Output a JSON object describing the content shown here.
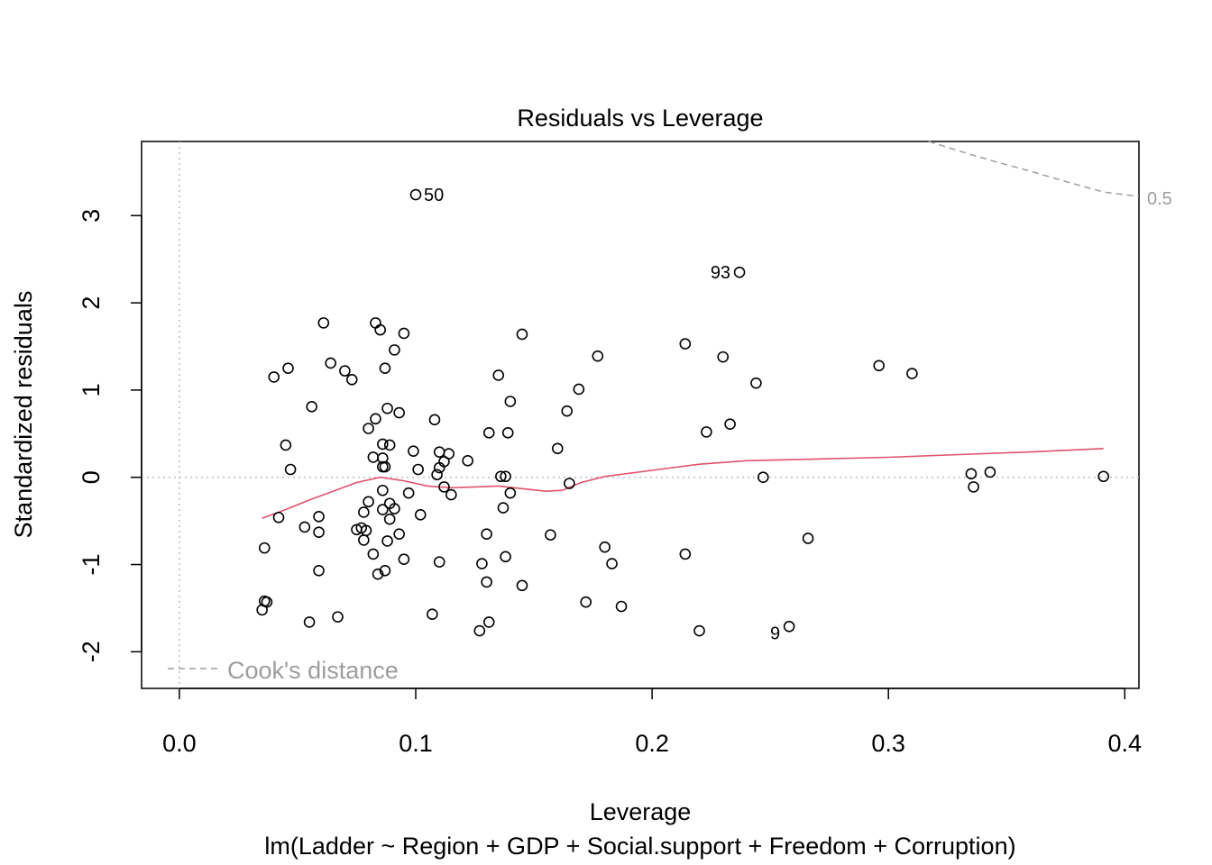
{
  "chart_data": {
    "type": "scatter",
    "title": "Residuals vs Leverage",
    "xlabel": "Leverage",
    "ylabel": "Standardized residuals",
    "subtitle": "lm(Ladder ~ Region + GDP + Social.support + Freedom + Corruption)",
    "xlim": [
      -0.016,
      0.406
    ],
    "ylim": [
      -2.42,
      3.85
    ],
    "x_ticks": [
      "0.0",
      "0.1",
      "0.2",
      "0.3",
      "0.4"
    ],
    "x_tick_values": [
      0,
      0.1,
      0.2,
      0.3,
      0.4
    ],
    "y_ticks": [
      "-2",
      "-1",
      "0",
      "1",
      "2",
      "3"
    ],
    "y_tick_values": [
      -2,
      -1,
      0,
      1,
      2,
      3
    ],
    "points": [
      {
        "x": 0.1,
        "y": 3.24,
        "label": "50"
      },
      {
        "x": 0.237,
        "y": 2.35,
        "label": "93"
      },
      {
        "x": 0.258,
        "y": -1.71,
        "label": "9"
      },
      {
        "x": 0.061,
        "y": 1.77
      },
      {
        "x": 0.083,
        "y": 1.77
      },
      {
        "x": 0.085,
        "y": 1.69
      },
      {
        "x": 0.095,
        "y": 1.65
      },
      {
        "x": 0.145,
        "y": 1.64
      },
      {
        "x": 0.091,
        "y": 1.46
      },
      {
        "x": 0.214,
        "y": 1.53
      },
      {
        "x": 0.177,
        "y": 1.39
      },
      {
        "x": 0.23,
        "y": 1.38
      },
      {
        "x": 0.064,
        "y": 1.31
      },
      {
        "x": 0.046,
        "y": 1.25
      },
      {
        "x": 0.087,
        "y": 1.25
      },
      {
        "x": 0.07,
        "y": 1.22
      },
      {
        "x": 0.04,
        "y": 1.15
      },
      {
        "x": 0.073,
        "y": 1.12
      },
      {
        "x": 0.135,
        "y": 1.17
      },
      {
        "x": 0.296,
        "y": 1.28
      },
      {
        "x": 0.31,
        "y": 1.19
      },
      {
        "x": 0.244,
        "y": 1.08
      },
      {
        "x": 0.169,
        "y": 1.01
      },
      {
        "x": 0.14,
        "y": 0.87
      },
      {
        "x": 0.056,
        "y": 0.81
      },
      {
        "x": 0.088,
        "y": 0.79
      },
      {
        "x": 0.093,
        "y": 0.74
      },
      {
        "x": 0.164,
        "y": 0.76
      },
      {
        "x": 0.083,
        "y": 0.67
      },
      {
        "x": 0.108,
        "y": 0.66
      },
      {
        "x": 0.08,
        "y": 0.56
      },
      {
        "x": 0.233,
        "y": 0.61
      },
      {
        "x": 0.223,
        "y": 0.52
      },
      {
        "x": 0.131,
        "y": 0.51
      },
      {
        "x": 0.139,
        "y": 0.51
      },
      {
        "x": 0.045,
        "y": 0.37
      },
      {
        "x": 0.086,
        "y": 0.38
      },
      {
        "x": 0.089,
        "y": 0.37
      },
      {
        "x": 0.099,
        "y": 0.3
      },
      {
        "x": 0.16,
        "y": 0.33
      },
      {
        "x": 0.11,
        "y": 0.29
      },
      {
        "x": 0.114,
        "y": 0.27
      },
      {
        "x": 0.082,
        "y": 0.23
      },
      {
        "x": 0.086,
        "y": 0.22
      },
      {
        "x": 0.112,
        "y": 0.18
      },
      {
        "x": 0.122,
        "y": 0.19
      },
      {
        "x": 0.086,
        "y": 0.12
      },
      {
        "x": 0.087,
        "y": 0.12
      },
      {
        "x": 0.047,
        "y": 0.09
      },
      {
        "x": 0.101,
        "y": 0.09
      },
      {
        "x": 0.11,
        "y": 0.11
      },
      {
        "x": 0.109,
        "y": 0.03
      },
      {
        "x": 0.136,
        "y": 0.01
      },
      {
        "x": 0.138,
        "y": 0.01
      },
      {
        "x": 0.247,
        "y": 0.0
      },
      {
        "x": 0.335,
        "y": 0.04
      },
      {
        "x": 0.343,
        "y": 0.06
      },
      {
        "x": 0.391,
        "y": 0.01
      },
      {
        "x": 0.336,
        "y": -0.11
      },
      {
        "x": 0.165,
        "y": -0.07
      },
      {
        "x": 0.112,
        "y": -0.11
      },
      {
        "x": 0.115,
        "y": -0.2
      },
      {
        "x": 0.086,
        "y": -0.15
      },
      {
        "x": 0.097,
        "y": -0.18
      },
      {
        "x": 0.14,
        "y": -0.18
      },
      {
        "x": 0.08,
        "y": -0.28
      },
      {
        "x": 0.089,
        "y": -0.3
      },
      {
        "x": 0.086,
        "y": -0.37
      },
      {
        "x": 0.091,
        "y": -0.36
      },
      {
        "x": 0.078,
        "y": -0.4
      },
      {
        "x": 0.042,
        "y": -0.46
      },
      {
        "x": 0.059,
        "y": -0.45
      },
      {
        "x": 0.089,
        "y": -0.48
      },
      {
        "x": 0.102,
        "y": -0.43
      },
      {
        "x": 0.137,
        "y": -0.35
      },
      {
        "x": 0.053,
        "y": -0.57
      },
      {
        "x": 0.075,
        "y": -0.6
      },
      {
        "x": 0.079,
        "y": -0.61
      },
      {
        "x": 0.077,
        "y": -0.58
      },
      {
        "x": 0.059,
        "y": -0.63
      },
      {
        "x": 0.093,
        "y": -0.65
      },
      {
        "x": 0.078,
        "y": -0.72
      },
      {
        "x": 0.088,
        "y": -0.73
      },
      {
        "x": 0.13,
        "y": -0.65
      },
      {
        "x": 0.157,
        "y": -0.66
      },
      {
        "x": 0.266,
        "y": -0.7
      },
      {
        "x": 0.036,
        "y": -0.81
      },
      {
        "x": 0.082,
        "y": -0.88
      },
      {
        "x": 0.095,
        "y": -0.94
      },
      {
        "x": 0.138,
        "y": -0.91
      },
      {
        "x": 0.18,
        "y": -0.8
      },
      {
        "x": 0.214,
        "y": -0.88
      },
      {
        "x": 0.11,
        "y": -0.97
      },
      {
        "x": 0.128,
        "y": -0.99
      },
      {
        "x": 0.183,
        "y": -0.99
      },
      {
        "x": 0.059,
        "y": -1.07
      },
      {
        "x": 0.084,
        "y": -1.11
      },
      {
        "x": 0.087,
        "y": -1.07
      },
      {
        "x": 0.13,
        "y": -1.2
      },
      {
        "x": 0.145,
        "y": -1.24
      },
      {
        "x": 0.172,
        "y": -1.43
      },
      {
        "x": 0.187,
        "y": -1.48
      },
      {
        "x": 0.036,
        "y": -1.42
      },
      {
        "x": 0.037,
        "y": -1.43
      },
      {
        "x": 0.035,
        "y": -1.52
      },
      {
        "x": 0.067,
        "y": -1.6
      },
      {
        "x": 0.055,
        "y": -1.66
      },
      {
        "x": 0.107,
        "y": -1.57
      },
      {
        "x": 0.131,
        "y": -1.66
      },
      {
        "x": 0.127,
        "y": -1.76
      },
      {
        "x": 0.22,
        "y": -1.76
      }
    ],
    "smoother": [
      [
        0.035,
        -0.47
      ],
      [
        0.045,
        -0.37
      ],
      [
        0.055,
        -0.26
      ],
      [
        0.065,
        -0.16
      ],
      [
        0.075,
        -0.06
      ],
      [
        0.085,
        0.0
      ],
      [
        0.095,
        -0.04
      ],
      [
        0.105,
        -0.1
      ],
      [
        0.115,
        -0.12
      ],
      [
        0.125,
        -0.11
      ],
      [
        0.135,
        -0.1
      ],
      [
        0.145,
        -0.13
      ],
      [
        0.155,
        -0.16
      ],
      [
        0.162,
        -0.15
      ],
      [
        0.17,
        -0.06
      ],
      [
        0.18,
        0.01
      ],
      [
        0.2,
        0.08
      ],
      [
        0.22,
        0.15
      ],
      [
        0.24,
        0.19
      ],
      [
        0.27,
        0.21
      ],
      [
        0.3,
        0.23
      ],
      [
        0.33,
        0.26
      ],
      [
        0.36,
        0.29
      ],
      [
        0.391,
        0.33
      ]
    ],
    "cooks_distance": {
      "label": "0.5",
      "curve": [
        [
          0.317,
          3.85
        ],
        [
          0.33,
          3.74
        ],
        [
          0.345,
          3.62
        ],
        [
          0.36,
          3.51
        ],
        [
          0.375,
          3.39
        ],
        [
          0.391,
          3.27
        ],
        [
          0.406,
          3.22
        ]
      ]
    },
    "legend": {
      "text": "Cook's distance",
      "placement": "bottom-left"
    }
  }
}
